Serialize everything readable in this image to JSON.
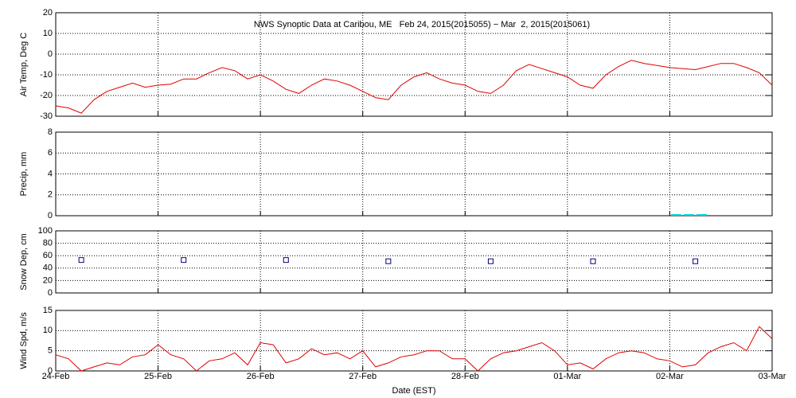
{
  "chart_data": [
    {
      "type": "line",
      "title": "NWS Synoptic Data at Caribou, ME   Feb 24, 2015(2015055) − Mar  2, 2015(2015061)",
      "ylabel": "Air Temp, Deg C",
      "color": "#e00000",
      "x": [
        0,
        0.125,
        0.25,
        0.375,
        0.5,
        0.625,
        0.75,
        0.875,
        1,
        1.125,
        1.25,
        1.375,
        1.5,
        1.625,
        1.75,
        1.875,
        2,
        2.125,
        2.25,
        2.375,
        2.5,
        2.625,
        2.75,
        2.875,
        3,
        3.125,
        3.25,
        3.375,
        3.5,
        3.625,
        3.75,
        3.875,
        4,
        4.125,
        4.25,
        4.375,
        4.5,
        4.625,
        4.75,
        4.875,
        5,
        5.125,
        5.25,
        5.375,
        5.5,
        5.625,
        5.75,
        5.875,
        6,
        6.125,
        6.25,
        6.375,
        6.5,
        6.625,
        6.75,
        6.875,
        7
      ],
      "values": [
        -25,
        -26,
        -28.5,
        -22,
        -18,
        -16,
        -14,
        -16,
        -15,
        -14.5,
        -12,
        -12,
        -9,
        -6.5,
        -8,
        -12,
        -10,
        -13,
        -17,
        -19,
        -15,
        -12,
        -13,
        -15,
        -18,
        -21,
        -22,
        -15,
        -11,
        -9,
        -12,
        -14,
        -15,
        -18,
        -19,
        -15,
        -8,
        -5,
        -7,
        -9,
        -11,
        -15,
        -16.5,
        -10,
        -6,
        -3,
        -4.5,
        -5.5,
        -6.5,
        -7,
        -7.5,
        -6,
        -4.5,
        -4.5,
        -6.5,
        -9,
        -15
      ],
      "xlim": [
        0,
        7
      ],
      "xticks": [
        0,
        1,
        2,
        3,
        4,
        5,
        6,
        7
      ],
      "ylim": [
        -30,
        20
      ],
      "yticks": [
        -30,
        -20,
        -10,
        0,
        10,
        20
      ],
      "grid": true
    },
    {
      "type": "bar",
      "ylabel": "Precip, mm",
      "color": "#00d8d8",
      "x": [
        6.0625,
        6.1875,
        6.3125
      ],
      "values": [
        0,
        0,
        0
      ],
      "xlim": [
        0,
        7
      ],
      "xticks": [
        0,
        1,
        2,
        3,
        4,
        5,
        6,
        7
      ],
      "ylim": [
        0,
        8
      ],
      "yticks": [
        0,
        2,
        4,
        6,
        8
      ],
      "grid": true
    },
    {
      "type": "scatter",
      "ylabel": "Snow Dep, cm",
      "color": "#000080",
      "x": [
        0.25,
        1.25,
        2.25,
        3.25,
        4.25,
        5.25,
        6.25
      ],
      "values": [
        53,
        53,
        53,
        51,
        51,
        51,
        51
      ],
      "xlim": [
        0,
        7
      ],
      "xticks": [
        0,
        1,
        2,
        3,
        4,
        5,
        6,
        7
      ],
      "ylim": [
        0,
        100
      ],
      "yticks": [
        0,
        20,
        40,
        60,
        80,
        100
      ],
      "grid": true
    },
    {
      "type": "line",
      "ylabel": "Wind Spd, m/s",
      "xlabel": "Date (EST)",
      "color": "#e00000",
      "x": [
        0,
        0.125,
        0.25,
        0.375,
        0.5,
        0.625,
        0.75,
        0.875,
        1,
        1.125,
        1.25,
        1.375,
        1.5,
        1.625,
        1.75,
        1.875,
        2,
        2.125,
        2.25,
        2.375,
        2.5,
        2.625,
        2.75,
        2.875,
        3,
        3.125,
        3.25,
        3.375,
        3.5,
        3.625,
        3.75,
        3.875,
        4,
        4.125,
        4.25,
        4.375,
        4.5,
        4.625,
        4.75,
        4.875,
        5,
        5.125,
        5.25,
        5.375,
        5.5,
        5.625,
        5.75,
        5.875,
        6,
        6.125,
        6.25,
        6.375,
        6.5,
        6.625,
        6.75,
        6.875,
        7
      ],
      "values": [
        4,
        3,
        0,
        1,
        2,
        1.5,
        3.5,
        4,
        6.5,
        4,
        3,
        0,
        2.5,
        3,
        4.5,
        1.5,
        7,
        6.5,
        2,
        3,
        5.5,
        4,
        4.5,
        3,
        5,
        1,
        2,
        3.5,
        4,
        5,
        5,
        3,
        3,
        0,
        3,
        4.5,
        5,
        6,
        7,
        5,
        1.5,
        2,
        0.5,
        3,
        4.5,
        5,
        4.5,
        3,
        2.5,
        1,
        1.5,
        4.5,
        6,
        7,
        5,
        11,
        8
      ],
      "xlim": [
        0,
        7
      ],
      "xticks": [
        {
          "value": 0,
          "label": "24-Feb"
        },
        {
          "value": 1,
          "label": "25-Feb"
        },
        {
          "value": 2,
          "label": "26-Feb"
        },
        {
          "value": 3,
          "label": "27-Feb"
        },
        {
          "value": 4,
          "label": "28-Feb"
        },
        {
          "value": 5,
          "label": "01-Mar"
        },
        {
          "value": 6,
          "label": "02-Mar"
        },
        {
          "value": 7,
          "label": "03-Mar"
        }
      ],
      "ylim": [
        0,
        15
      ],
      "yticks": [
        0,
        5,
        10,
        15
      ],
      "grid": true
    }
  ]
}
